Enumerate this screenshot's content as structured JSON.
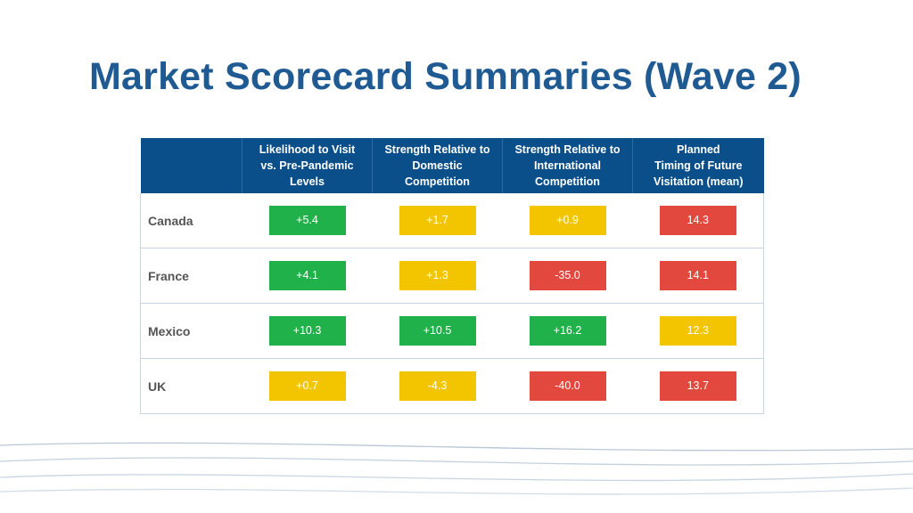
{
  "title": "Market Scorecard Summaries (Wave 2)",
  "colors": {
    "header_bg": "#0b4f8a",
    "title": "#1f5a93",
    "green": "#21b14b",
    "yellow": "#f2c500",
    "red": "#e2483d"
  },
  "columns": [
    {
      "line1": "Likelihood to Visit",
      "line2": "vs. Pre-Pandemic",
      "line3": "Levels"
    },
    {
      "line1": "Strength Relative to",
      "line2": "Domestic",
      "line3": "Competition"
    },
    {
      "line1": "Strength Relative to",
      "line2": "International",
      "line3": "Competition"
    },
    {
      "line1": "Planned",
      "line2": "Timing of Future",
      "line3": "Visitation (mean)"
    }
  ],
  "rows": [
    {
      "label": "Canada",
      "cells": [
        {
          "value": "+5.4",
          "status": "green"
        },
        {
          "value": "+1.7",
          "status": "yellow"
        },
        {
          "value": "+0.9",
          "status": "yellow"
        },
        {
          "value": "14.3",
          "status": "red"
        }
      ]
    },
    {
      "label": "France",
      "cells": [
        {
          "value": "+4.1",
          "status": "green"
        },
        {
          "value": "+1.3",
          "status": "yellow"
        },
        {
          "value": "-35.0",
          "status": "red"
        },
        {
          "value": "14.1",
          "status": "red"
        }
      ]
    },
    {
      "label": "Mexico",
      "cells": [
        {
          "value": "+10.3",
          "status": "green"
        },
        {
          "value": "+10.5",
          "status": "green"
        },
        {
          "value": "+16.2",
          "status": "green"
        },
        {
          "value": "12.3",
          "status": "yellow"
        }
      ]
    },
    {
      "label": "UK",
      "cells": [
        {
          "value": "+0.7",
          "status": "yellow"
        },
        {
          "value": "-4.3",
          "status": "yellow"
        },
        {
          "value": "-40.0",
          "status": "red"
        },
        {
          "value": "13.7",
          "status": "red"
        }
      ]
    }
  ]
}
